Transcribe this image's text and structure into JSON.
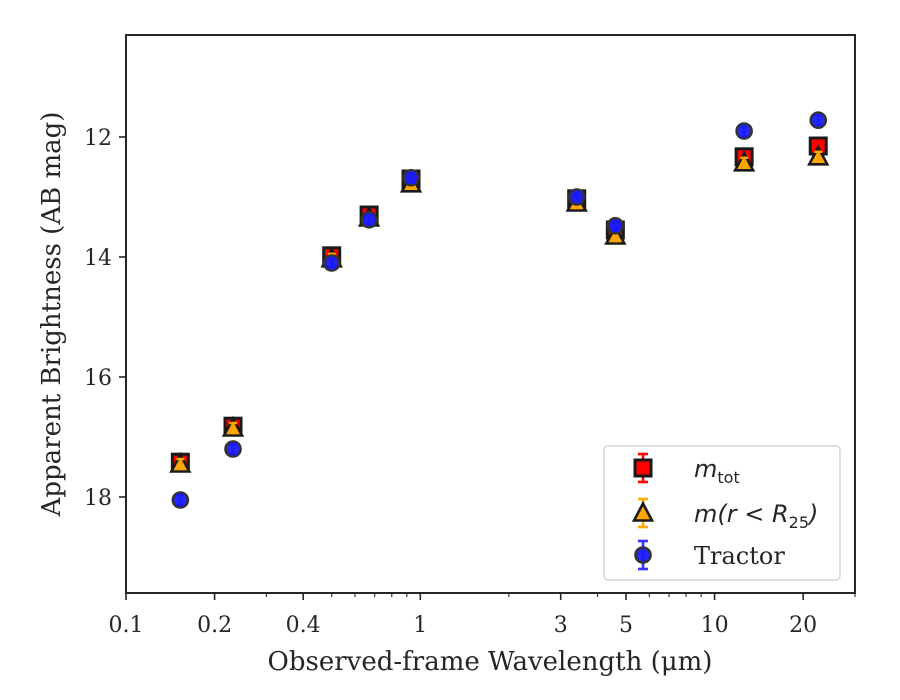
{
  "chart_data": {
    "type": "scatter",
    "xlabel": "Observed-frame Wavelength (μm)",
    "ylabel": "Apparent Brightness (AB mag)",
    "xscale": "log",
    "yscale": "linear",
    "y_inverted": true,
    "xlim": [
      0.1,
      30
    ],
    "ylim": [
      10.3,
      19.6
    ],
    "x_ticks": [
      {
        "value": 0.1,
        "label": "0.1"
      },
      {
        "value": 0.2,
        "label": "0.2"
      },
      {
        "value": 0.4,
        "label": "0.4"
      },
      {
        "value": 1,
        "label": "1"
      },
      {
        "value": 3,
        "label": "3"
      },
      {
        "value": 5,
        "label": "5"
      },
      {
        "value": 10,
        "label": "10"
      },
      {
        "value": 20,
        "label": "20"
      }
    ],
    "y_ticks": [
      {
        "value": 12,
        "label": "12"
      },
      {
        "value": 14,
        "label": "14"
      },
      {
        "value": 16,
        "label": "16"
      },
      {
        "value": 18,
        "label": "18"
      }
    ],
    "grid": false,
    "legend_position": "lower-right",
    "series": [
      {
        "name": "m_tot",
        "legend_main": "m",
        "legend_sub": "tot",
        "marker": "square",
        "color": "#ff0000",
        "edge_color": "#1a1a1a",
        "points": [
          {
            "x": 0.153,
            "y": 17.42
          },
          {
            "x": 0.231,
            "y": 16.82
          },
          {
            "x": 0.5,
            "y": 13.98
          },
          {
            "x": 0.67,
            "y": 13.3
          },
          {
            "x": 0.93,
            "y": 12.7
          },
          {
            "x": 3.4,
            "y": 13.03
          },
          {
            "x": 4.6,
            "y": 13.55
          },
          {
            "x": 12.6,
            "y": 12.33
          },
          {
            "x": 22.5,
            "y": 12.15
          }
        ]
      },
      {
        "name": "m(r<R_25)",
        "legend_main": "m(r < R",
        "legend_sub": "25",
        "legend_tail": ")",
        "marker": "triangle",
        "color": "#ffa500",
        "edge_color": "#1a1a1a",
        "points": [
          {
            "x": 0.153,
            "y": 17.45
          },
          {
            "x": 0.231,
            "y": 16.85
          },
          {
            "x": 0.5,
            "y": 14.03
          },
          {
            "x": 0.67,
            "y": 13.35
          },
          {
            "x": 0.93,
            "y": 12.78
          },
          {
            "x": 3.4,
            "y": 13.1
          },
          {
            "x": 4.6,
            "y": 13.65
          },
          {
            "x": 12.6,
            "y": 12.43
          },
          {
            "x": 22.5,
            "y": 12.33
          }
        ]
      },
      {
        "name": "Tractor",
        "legend_main": "Tractor",
        "marker": "circle",
        "color": "#1a1aff",
        "edge_color": "#333333",
        "points": [
          {
            "x": 0.153,
            "y": 18.05
          },
          {
            "x": 0.231,
            "y": 17.2
          },
          {
            "x": 0.5,
            "y": 14.1
          },
          {
            "x": 0.67,
            "y": 13.38
          },
          {
            "x": 0.93,
            "y": 12.68
          },
          {
            "x": 3.4,
            "y": 13.0
          },
          {
            "x": 4.6,
            "y": 13.48
          },
          {
            "x": 12.6,
            "y": 11.9
          },
          {
            "x": 22.5,
            "y": 11.72
          }
        ]
      }
    ]
  }
}
